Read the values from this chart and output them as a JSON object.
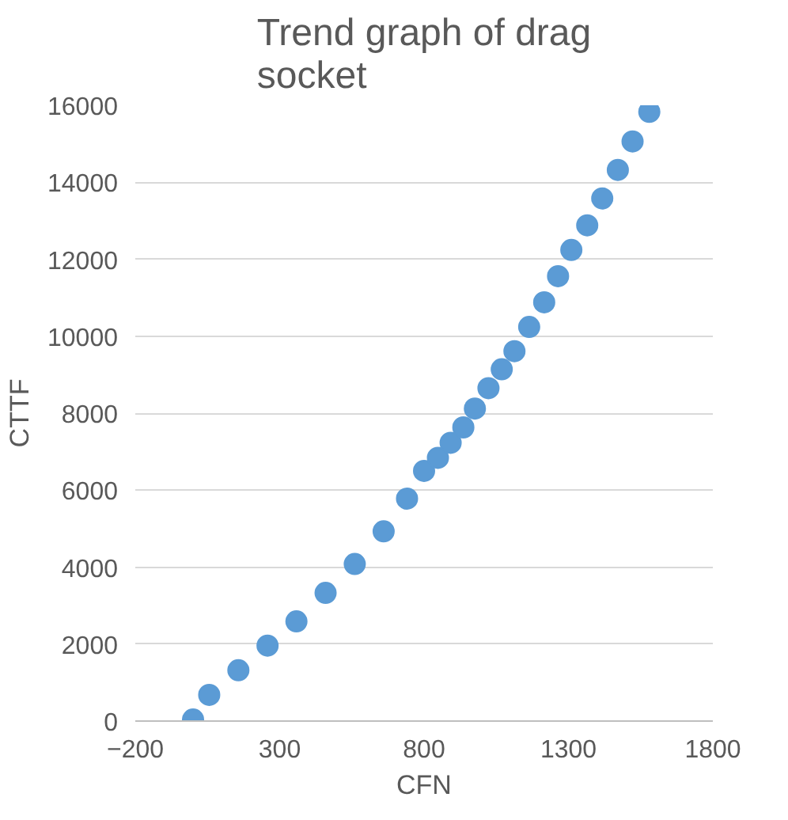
{
  "chart_data": {
    "type": "scatter",
    "title": "Trend graph of drag socket",
    "xlabel": "CFN",
    "ylabel": "CTTF",
    "x": [
      0,
      56,
      157,
      258,
      358,
      459,
      560,
      660,
      741,
      800,
      848,
      892,
      936,
      976,
      1023,
      1069,
      1113,
      1164,
      1216,
      1264,
      1310,
      1365,
      1417,
      1471,
      1522,
      1580
    ],
    "values": [
      40,
      680,
      1320,
      1960,
      2590,
      3330,
      4080,
      4930,
      5780,
      6500,
      6840,
      7230,
      7630,
      8120,
      8650,
      9140,
      9610,
      10240,
      10880,
      11560,
      12240,
      12880,
      13580,
      14320,
      15060,
      15830
    ],
    "color": "#5b9bd5",
    "marker": "circle",
    "grid": "y",
    "xlim": [
      -200,
      1800
    ],
    "xticks": [
      -200,
      300,
      800,
      1300,
      1800
    ],
    "ylim": [
      0,
      16000
    ],
    "yticks": [
      0,
      2000,
      4000,
      6000,
      8000,
      10000,
      12000,
      14000,
      16000
    ]
  }
}
